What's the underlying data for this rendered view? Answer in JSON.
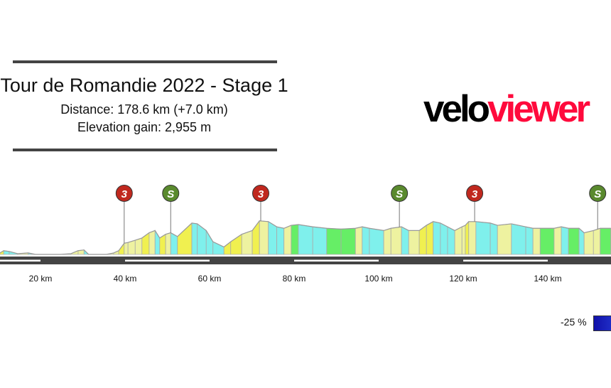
{
  "header": {
    "title": "Tour de Romandie 2022 - Stage 1",
    "distance": "Distance: 178.6 km (+7.0 km)",
    "elevation_gain": "Elevation gain: 2,955 m"
  },
  "logo": {
    "part1": "velo",
    "part2": "viewer",
    "color1": "#000000",
    "color2": "#ff0a3c"
  },
  "legend": {
    "label": "-25 %",
    "color": "#1a1ab8"
  },
  "chart_data": {
    "type": "area",
    "x_unit": "km",
    "x_ticks": [
      20,
      40,
      60,
      80,
      100,
      120,
      140
    ],
    "x_tick_labels": [
      "20 km",
      "40 km",
      "60 km",
      "80 km",
      "100 km",
      "120 km",
      "140 km"
    ],
    "profile_relative_height": [
      [
        10.4,
        2
      ],
      [
        11.3,
        5
      ],
      [
        12.6,
        4
      ],
      [
        14.6,
        1
      ],
      [
        17.1,
        2
      ],
      [
        18.8,
        0
      ],
      [
        22.2,
        0
      ],
      [
        24.7,
        0
      ],
      [
        27.2,
        1
      ],
      [
        28.9,
        5
      ],
      [
        30.3,
        6
      ],
      [
        31.4,
        0
      ],
      [
        35.6,
        0
      ],
      [
        37.3,
        2
      ],
      [
        38.5,
        5
      ],
      [
        39.8,
        15
      ],
      [
        40.7,
        16
      ],
      [
        42.4,
        19
      ],
      [
        44.0,
        22
      ],
      [
        45.7,
        29
      ],
      [
        47.1,
        32
      ],
      [
        48.2,
        22
      ],
      [
        49.6,
        27
      ],
      [
        50.8,
        29
      ],
      [
        52.4,
        24
      ],
      [
        55.8,
        42
      ],
      [
        57.1,
        41
      ],
      [
        59.2,
        32
      ],
      [
        60.8,
        17
      ],
      [
        63.4,
        10
      ],
      [
        65.0,
        17
      ],
      [
        67.6,
        27
      ],
      [
        70.1,
        32
      ],
      [
        71.8,
        45
      ],
      [
        73.9,
        44
      ],
      [
        75.9,
        37
      ],
      [
        77.6,
        35
      ],
      [
        79.3,
        39
      ],
      [
        81.0,
        40
      ],
      [
        84.4,
        37
      ],
      [
        87.7,
        35
      ],
      [
        91.1,
        34
      ],
      [
        94.5,
        35
      ],
      [
        96.1,
        37
      ],
      [
        97.8,
        35
      ],
      [
        101.2,
        32
      ],
      [
        102.9,
        35
      ],
      [
        105.4,
        37
      ],
      [
        107.1,
        32
      ],
      [
        109.6,
        32
      ],
      [
        111.3,
        39
      ],
      [
        112.9,
        44
      ],
      [
        114.6,
        42
      ],
      [
        116.3,
        37
      ],
      [
        118.0,
        32
      ],
      [
        119.7,
        37
      ],
      [
        120.5,
        39
      ],
      [
        121.3,
        44
      ],
      [
        123.0,
        44
      ],
      [
        126.4,
        42
      ],
      [
        128.1,
        39
      ],
      [
        131.4,
        41
      ],
      [
        134.8,
        37
      ],
      [
        136.5,
        35
      ],
      [
        138.2,
        35
      ],
      [
        141.5,
        35
      ],
      [
        143.2,
        37
      ],
      [
        144.9,
        35
      ],
      [
        147.4,
        35
      ],
      [
        148.6,
        29
      ],
      [
        150.8,
        32
      ],
      [
        152.4,
        35
      ],
      [
        154.9,
        35
      ]
    ],
    "markers": [
      {
        "km": 39.8,
        "label": "3",
        "type": "climb",
        "color": "#c0281e"
      },
      {
        "km": 50.8,
        "label": "S",
        "type": "sprint",
        "color": "#5a8a2e"
      },
      {
        "km": 72.1,
        "label": "3",
        "type": "climb",
        "color": "#c0281e"
      },
      {
        "km": 104.9,
        "label": "S",
        "type": "sprint",
        "color": "#5a8a2e"
      },
      {
        "km": 122.7,
        "label": "3",
        "type": "climb",
        "color": "#c0281e"
      },
      {
        "km": 151.8,
        "label": "S",
        "type": "sprint",
        "color": "#5a8a2e"
      }
    ],
    "gradient_colors": {
      "descent": "#7ff0ec",
      "flat": "#66ee66",
      "gentle": "#eef2a0",
      "climb": "#f0f050"
    }
  }
}
